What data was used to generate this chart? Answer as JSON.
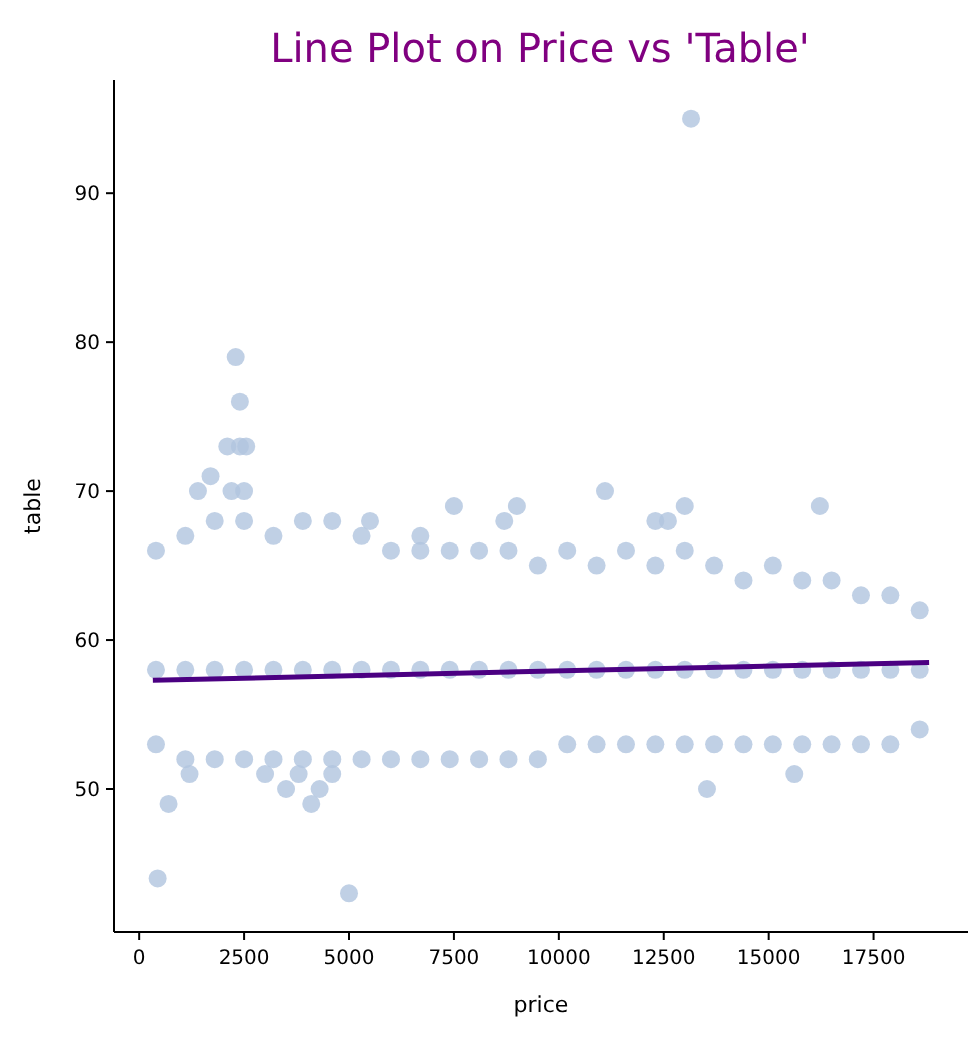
{
  "chart_data": {
    "type": "scatter",
    "title": "Line Plot on Price vs 'Table'",
    "xlabel": "price",
    "ylabel": "table",
    "xlim": [
      -600,
      19750
    ],
    "ylim": [
      40.4,
      97.6
    ],
    "xticks": [
      0,
      2500,
      5000,
      7500,
      10000,
      12500,
      15000,
      17500
    ],
    "yticks": [
      50,
      60,
      70,
      80,
      90
    ],
    "marker": "circle",
    "series": [
      {
        "color": "#b0c4de",
        "x": [
          400,
          1100,
          1800,
          2500,
          3200,
          3900,
          4600,
          5300,
          6000,
          6700,
          7400,
          8100,
          8800,
          9500,
          10200,
          10900,
          11600,
          12300,
          13000,
          13700,
          14400,
          15100,
          15800,
          16500,
          17200,
          17900,
          18600,
          400,
          1100,
          1800,
          2500,
          3200,
          3900,
          4600,
          5300,
          6000,
          6700,
          7400,
          8100,
          8800,
          9500,
          10200,
          10900,
          11600,
          12300,
          13000,
          13700,
          14400,
          15100,
          15800,
          16500,
          17200,
          17900,
          18600,
          400,
          1100,
          1800,
          2500,
          3200,
          3900,
          4600,
          5300,
          6000,
          6700,
          7400,
          8100,
          8800,
          9500,
          10200,
          10900,
          11600,
          12300,
          13000,
          13700,
          14400,
          15100,
          15800,
          16500,
          17200,
          17900,
          18600,
          440,
          700,
          1200,
          2300,
          2400,
          2100,
          2400,
          2550,
          1700,
          1400,
          2200,
          2500,
          3000,
          3500,
          3800,
          4100,
          4300,
          4600,
          5000,
          5500,
          6700,
          7500,
          8700,
          9000,
          11100,
          12300,
          12600,
          13000,
          13150,
          13530,
          15610,
          16220
        ],
        "values": [
          66,
          67,
          68,
          68,
          67,
          68,
          68,
          67,
          66,
          66,
          66,
          66,
          66,
          65,
          66,
          65,
          66,
          65,
          66,
          65,
          64,
          65,
          64,
          64,
          63,
          63,
          62,
          53,
          52,
          52,
          52,
          52,
          52,
          52,
          52,
          52,
          52,
          52,
          52,
          52,
          52,
          53,
          53,
          53,
          53,
          53,
          53,
          53,
          53,
          53,
          53,
          53,
          53,
          54,
          58,
          58,
          58,
          58,
          58,
          58,
          58,
          58,
          58,
          58,
          58,
          58,
          58,
          58,
          58,
          58,
          58,
          58,
          58,
          58,
          58,
          58,
          58,
          58,
          58,
          58,
          58,
          44,
          49,
          51,
          79,
          76,
          73,
          73,
          73,
          71,
          70,
          70,
          70,
          51,
          50,
          51,
          49,
          50,
          51,
          43,
          68,
          67,
          69,
          68,
          69,
          70,
          68,
          68,
          69,
          95,
          50,
          51,
          69
        ]
      },
      {
        "type": "line",
        "marker": "none",
        "color": "#4b0082",
        "x": [
          326,
          18823
        ],
        "values": [
          57.3,
          58.5
        ]
      }
    ]
  }
}
